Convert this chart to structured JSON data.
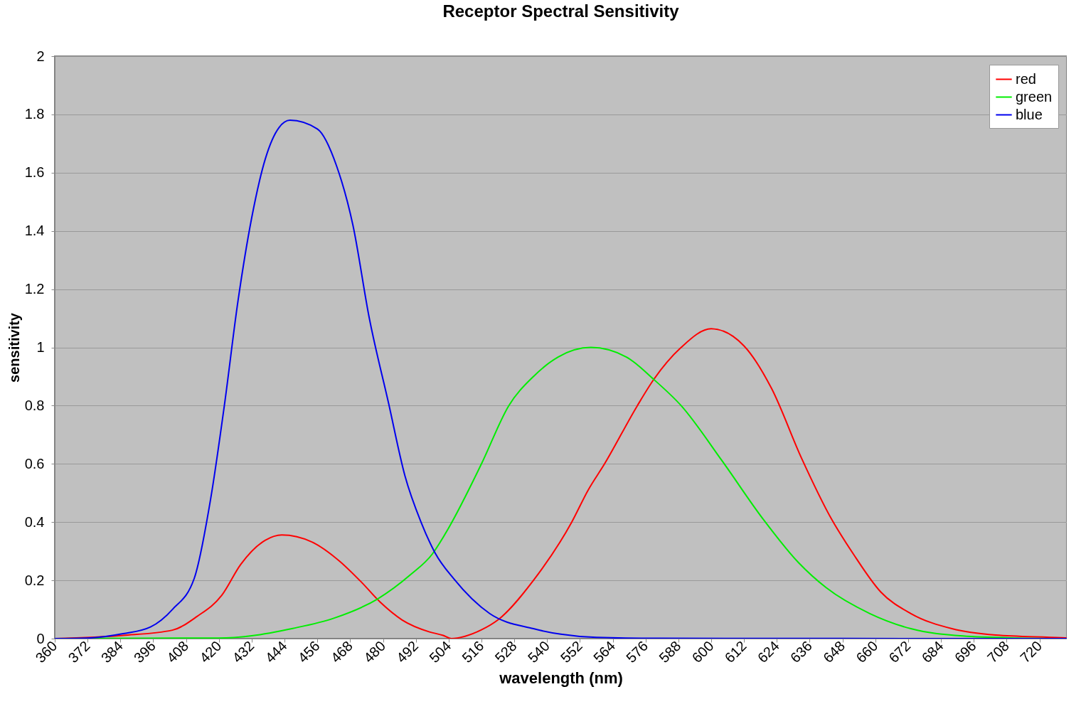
{
  "chart_data": {
    "type": "line",
    "title": "Receptor Spectral Sensitivity",
    "xlabel": "wavelength (nm)",
    "ylabel": "sensitivity",
    "xlim": [
      360,
      730
    ],
    "xticks": [
      360,
      372,
      384,
      396,
      408,
      420,
      432,
      444,
      456,
      468,
      480,
      492,
      504,
      516,
      528,
      540,
      552,
      564,
      576,
      588,
      600,
      612,
      624,
      636,
      648,
      660,
      672,
      684,
      696,
      708,
      720
    ],
    "ylim": [
      0,
      2
    ],
    "yticks": [
      0,
      0.2,
      0.4,
      0.6,
      0.8,
      1,
      1.2,
      1.4,
      1.6,
      1.8,
      2
    ],
    "grid": "y",
    "legend": "top right",
    "marker": "none",
    "line_style": "solid",
    "series": [
      {
        "name": "red",
        "color": "#ff0000",
        "x": [
          360,
          385,
          403,
          412,
          421,
          428,
          437,
          443,
          454,
          464,
          472,
          479,
          487,
          497,
          502,
          505,
          510,
          516,
          522,
          535,
          549,
          555,
          561,
          573,
          579,
          589,
          600,
          612,
          622,
          633,
          644,
          652,
          662,
          673,
          688,
          704,
          728,
          730
        ],
        "values": [
          0,
          0.011,
          0.029,
          0.076,
          0.148,
          0.255,
          0.338,
          0.356,
          0.332,
          0.267,
          0.195,
          0.125,
          0.064,
          0.023,
          0.011,
          0,
          0.008,
          0.03,
          0.064,
          0.2,
          0.4,
          0.51,
          0.6,
          0.8,
          0.89,
          1.0,
          1.064,
          1.005,
          0.86,
          0.62,
          0.41,
          0.29,
          0.16,
          0.086,
          0.034,
          0.012,
          0.003,
          0.002
        ]
      },
      {
        "name": "green",
        "color": "#00ee00",
        "x": [
          360,
          420,
          432,
          447,
          462,
          478,
          490,
          498,
          504,
          516,
          526,
          535,
          544,
          556,
          569,
          579,
          589,
          604,
          619,
          632,
          642,
          658,
          673,
          692,
          712,
          730
        ],
        "values": [
          0,
          0.002,
          0.01,
          0.035,
          0.07,
          0.136,
          0.219,
          0.29,
          0.38,
          0.6,
          0.8,
          0.9,
          0.967,
          1.0,
          0.967,
          0.89,
          0.8,
          0.61,
          0.41,
          0.26,
          0.175,
          0.086,
          0.034,
          0.009,
          0.002,
          0
        ]
      },
      {
        "name": "blue",
        "color": "#0000ee",
        "x": [
          360,
          372,
          385,
          395,
          403,
          411,
          417,
          422,
          427,
          432,
          437,
          442,
          446,
          456,
          463,
          469,
          475,
          482,
          488,
          494,
          499,
          506,
          519,
          535,
          545,
          558,
          580,
          730
        ],
        "values": [
          0,
          0.002,
          0.017,
          0.04,
          0.1,
          0.207,
          0.48,
          0.8,
          1.16,
          1.445,
          1.648,
          1.755,
          1.78,
          1.75,
          1.624,
          1.42,
          1.1,
          0.81,
          0.56,
          0.398,
          0.295,
          0.204,
          0.086,
          0.034,
          0.015,
          0.004,
          0.001,
          0
        ]
      }
    ]
  }
}
